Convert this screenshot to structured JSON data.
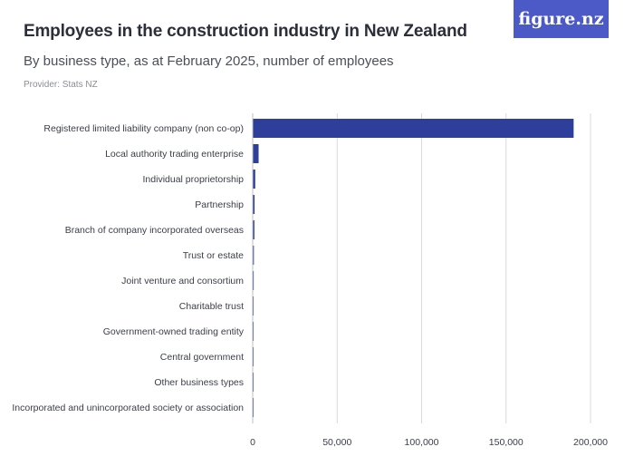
{
  "header": {
    "title": "Employees in the construction industry in New Zealand",
    "subtitle": "By business type, as at February 2025, number of employees",
    "provider": "Provider: Stats NZ",
    "logo_text": "figure.nz"
  },
  "colors": {
    "bar": "#2d3e9b",
    "grid": "#d9d9d9",
    "logo_bg": "#4b5ac6"
  },
  "chart_data": {
    "type": "bar",
    "orientation": "horizontal",
    "categories": [
      "Registered limited liability company (non co-op)",
      "Local authority trading enterprise",
      "Individual proprietorship",
      "Partnership",
      "Branch of company incorporated overseas",
      "Trust or estate",
      "Joint venture and consortium",
      "Charitable trust",
      "Government-owned trading entity",
      "Central government",
      "Other business types",
      "Incorporated and unincorporated society or association"
    ],
    "values": [
      190000,
      3500,
      1500,
      1100,
      1000,
      700,
      600,
      150,
      100,
      50,
      40,
      30
    ],
    "xlim": [
      0,
      200000
    ],
    "xticks": [
      0,
      50000,
      100000,
      150000,
      200000
    ],
    "xtick_labels": [
      "0",
      "50,000",
      "100,000",
      "150,000",
      "200,000"
    ],
    "grid": true
  }
}
